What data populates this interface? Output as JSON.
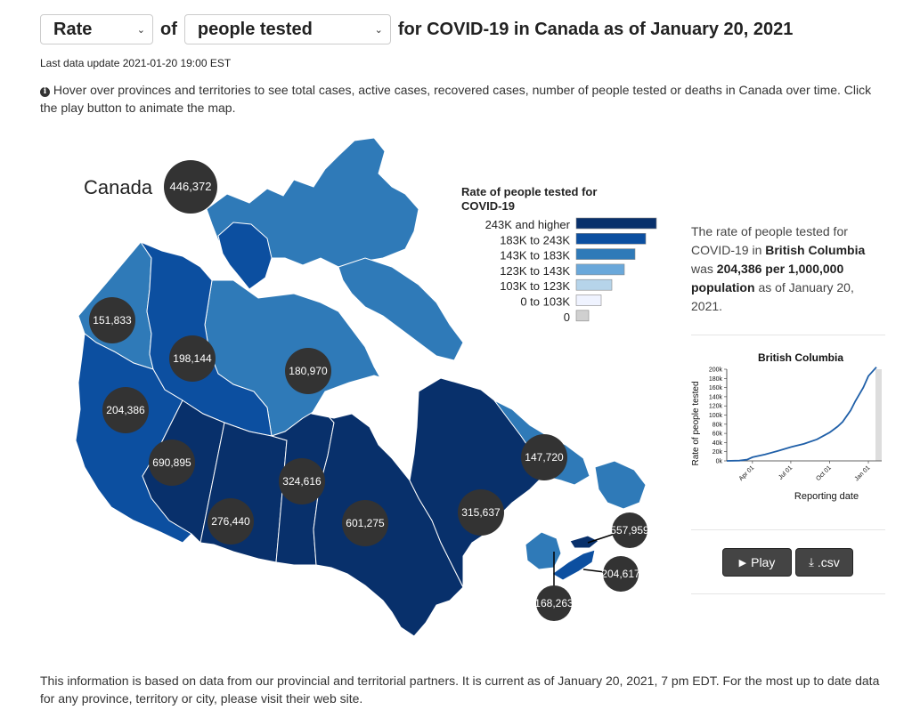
{
  "header": {
    "metric_select": "Rate",
    "of_text": "of",
    "measure_select": "people tested",
    "title_suffix": "for COVID-19 in Canada as of January 20, 2021"
  },
  "last_update": "Last data update 2021-01-20 19:00 EST",
  "info_text": "Hover over provinces and territories to see total cases, active cases, recovered cases, number of people tested or deaths in Canada over time. Click the play button to animate the map.",
  "map": {
    "canada_label": "Canada",
    "canada_value": "446,372",
    "regions": [
      {
        "key": "YT",
        "value": "151,833",
        "fill": "#2f7ab8"
      },
      {
        "key": "NT",
        "value": "198,144",
        "fill": "#0c4fa0"
      },
      {
        "key": "NU",
        "value": "180,970",
        "fill": "#2f7ab8"
      },
      {
        "key": "BC",
        "value": "204,386",
        "fill": "#0c4fa0"
      },
      {
        "key": "AB",
        "value": "690,895",
        "fill": "#08306b"
      },
      {
        "key": "SK",
        "value": "276,440",
        "fill": "#08306b"
      },
      {
        "key": "MB",
        "value": "324,616",
        "fill": "#08306b"
      },
      {
        "key": "ON",
        "value": "601,275",
        "fill": "#08306b"
      },
      {
        "key": "QC",
        "value": "315,637",
        "fill": "#08306b"
      },
      {
        "key": "NL",
        "value": "147,720",
        "fill": "#2f7ab8"
      },
      {
        "key": "PE",
        "value": "557,959",
        "fill": "#08306b"
      },
      {
        "key": "NS",
        "value": "204,617",
        "fill": "#0c4fa0"
      },
      {
        "key": "NB",
        "value": "168,263",
        "fill": "#2f7ab8"
      }
    ]
  },
  "legend": {
    "title_line1": "Rate of people tested for",
    "title_line2": "COVID-19",
    "items": [
      {
        "label": "243K and higher",
        "color": "#08306b"
      },
      {
        "label": "183K to 243K",
        "color": "#0c4fa0"
      },
      {
        "label": "143K to 183K",
        "color": "#2f7ab8"
      },
      {
        "label": "123K to 143K",
        "color": "#6aa8da"
      },
      {
        "label": "103K to 123K",
        "color": "#b6d4ea"
      },
      {
        "label": "0 to 103K",
        "color": "#eff3ff"
      },
      {
        "label": "0",
        "color": "#d0d0d0"
      }
    ]
  },
  "side": {
    "line_pre": "The rate of people tested for COVID-19 in",
    "region": "British Columbia",
    "was": "was",
    "value": "204,386 per 1,000,000 population",
    "line_post": "as of January 20, 2021."
  },
  "chart_data": {
    "type": "line",
    "title": "British Columbia",
    "xlabel": "Reporting date",
    "ylabel": "Rate of people tested",
    "yticks": [
      "0k",
      "20k",
      "40k",
      "60k",
      "80k",
      "100k",
      "120k",
      "140k",
      "160k",
      "180k",
      "200k"
    ],
    "xticks": [
      "Apr 01",
      "Jul 01",
      "Oct 01",
      "Jan 01"
    ],
    "ylim": [
      0,
      200000
    ],
    "x": [
      "2020-01-31",
      "2020-03-01",
      "2020-03-20",
      "2020-04-01",
      "2020-05-01",
      "2020-06-01",
      "2020-07-01",
      "2020-08-01",
      "2020-09-01",
      "2020-10-01",
      "2020-10-20",
      "2020-11-01",
      "2020-11-20",
      "2020-12-01",
      "2020-12-20",
      "2021-01-01",
      "2021-01-20"
    ],
    "values": [
      0,
      500,
      3000,
      8000,
      14000,
      22000,
      30000,
      37000,
      47000,
      62000,
      75000,
      85000,
      110000,
      130000,
      160000,
      185000,
      204386
    ]
  },
  "buttons": {
    "play": "Play",
    "csv": ".csv"
  },
  "footer": "This information is based on data from our provincial and territorial partners. It is current as of January 20, 2021, 7 pm EDT. For the most up to date data for any province, territory or city, please visit their web site."
}
